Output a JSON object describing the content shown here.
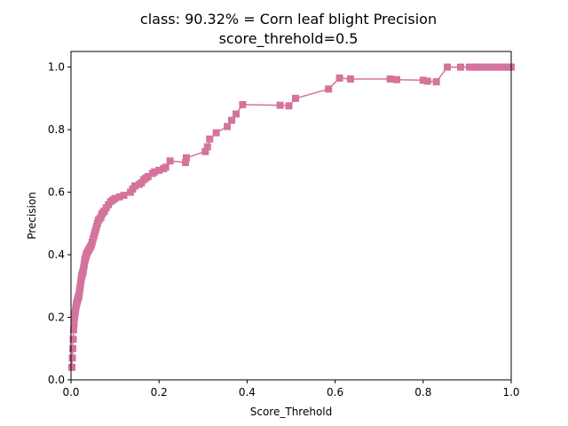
{
  "chart_data": {
    "type": "line",
    "title": "class: 90.32% = Corn leaf blight Precision",
    "subtitle": "score_threhold=0.5",
    "xlabel": "Score_Threhold",
    "ylabel": "Precision",
    "xlim": [
      0,
      1
    ],
    "ylim": [
      0,
      1.05
    ],
    "xticks": [
      0,
      0.2,
      0.4,
      0.6,
      0.8,
      1.0
    ],
    "xtick_labels": [
      "0.0",
      "0.2",
      "0.4",
      "0.6",
      "0.8",
      "1.0"
    ],
    "yticks": [
      0,
      0.2,
      0.4,
      0.6,
      0.8,
      1.0
    ],
    "ytick_labels": [
      "0.0",
      "0.2",
      "0.4",
      "0.6",
      "0.8",
      "1.0"
    ],
    "grid": false,
    "marker": "square",
    "color": "#d4739b",
    "series": [
      {
        "x": [
          0.002,
          0.003,
          0.004,
          0.005,
          0.006,
          0.007,
          0.008,
          0.009,
          0.01,
          0.011,
          0.012,
          0.013,
          0.014,
          0.015,
          0.016,
          0.017,
          0.018,
          0.019,
          0.02,
          0.021,
          0.022,
          0.023,
          0.024,
          0.025,
          0.026,
          0.027,
          0.028,
          0.029,
          0.03,
          0.031,
          0.032,
          0.033,
          0.034,
          0.035,
          0.036,
          0.038,
          0.04,
          0.042,
          0.044,
          0.046,
          0.048,
          0.05,
          0.052,
          0.054,
          0.056,
          0.058,
          0.06,
          0.062,
          0.065,
          0.068,
          0.07,
          0.073,
          0.076,
          0.08,
          0.085,
          0.09,
          0.095,
          0.1,
          0.11,
          0.12,
          0.135,
          0.14,
          0.145,
          0.155,
          0.16,
          0.165,
          0.17,
          0.175,
          0.185,
          0.19,
          0.2,
          0.21,
          0.215,
          0.225,
          0.26,
          0.262,
          0.305,
          0.31,
          0.315,
          0.33,
          0.355,
          0.365,
          0.375,
          0.39,
          0.475,
          0.495,
          0.51,
          0.585,
          0.61,
          0.635,
          0.725,
          0.74,
          0.8,
          0.81,
          0.83,
          0.855,
          0.885,
          0.905,
          0.915,
          0.92,
          0.925,
          0.935,
          0.945,
          0.955,
          0.965,
          0.975,
          0.985,
          0.99,
          0.995,
          1.0
        ],
        "y": [
          0.04,
          0.07,
          0.1,
          0.13,
          0.16,
          0.18,
          0.2,
          0.21,
          0.22,
          0.23,
          0.24,
          0.245,
          0.25,
          0.255,
          0.26,
          0.265,
          0.27,
          0.28,
          0.29,
          0.3,
          0.31,
          0.32,
          0.33,
          0.335,
          0.34,
          0.345,
          0.35,
          0.36,
          0.37,
          0.38,
          0.385,
          0.39,
          0.395,
          0.4,
          0.405,
          0.41,
          0.415,
          0.42,
          0.425,
          0.43,
          0.44,
          0.45,
          0.46,
          0.47,
          0.48,
          0.49,
          0.5,
          0.51,
          0.515,
          0.52,
          0.53,
          0.535,
          0.54,
          0.55,
          0.56,
          0.57,
          0.575,
          0.58,
          0.585,
          0.59,
          0.6,
          0.61,
          0.62,
          0.625,
          0.63,
          0.64,
          0.645,
          0.65,
          0.66,
          0.665,
          0.67,
          0.675,
          0.68,
          0.7,
          0.695,
          0.71,
          0.73,
          0.745,
          0.77,
          0.79,
          0.81,
          0.83,
          0.85,
          0.88,
          0.878,
          0.876,
          0.9,
          0.93,
          0.965,
          0.962,
          0.962,
          0.96,
          0.958,
          0.955,
          0.953,
          1.0,
          1.0,
          1.0,
          1.0,
          1.0,
          1.0,
          1.0,
          1.0,
          1.0,
          1.0,
          1.0,
          1.0,
          1.0,
          1.0,
          1.0
        ]
      }
    ]
  }
}
